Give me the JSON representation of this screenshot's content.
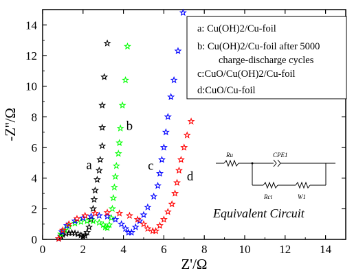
{
  "chart_data": {
    "type": "scatter",
    "title": "",
    "xlabel": "Z'/Ω",
    "ylabel": "-Z''/Ω",
    "xlim": [
      0,
      15
    ],
    "ylim": [
      0,
      15
    ],
    "xticks": [
      0,
      2,
      4,
      6,
      8,
      10,
      12,
      14
    ],
    "yticks": [
      0,
      2,
      4,
      6,
      8,
      10,
      12,
      14
    ],
    "grid": false,
    "legend_position": "top-right",
    "legend": [
      {
        "key": "a",
        "lines": [
          "a: Cu(OH)2/Cu-foil"
        ]
      },
      {
        "key": "b",
        "lines": [
          "b: Cu(OH)2/Cu-foil after 5000",
          "charge-discharge cycles"
        ]
      },
      {
        "key": "c",
        "lines": [
          "c:CuO/Cu(OH)2/Cu-foil"
        ]
      },
      {
        "key": "d",
        "lines": [
          "d:CuO/Cu-foil"
        ]
      }
    ],
    "series": [
      {
        "label": "a",
        "color": "#000000",
        "points": [
          [
            0.8,
            0.05
          ],
          [
            0.9,
            0.2
          ],
          [
            1.0,
            0.3
          ],
          [
            1.15,
            0.38
          ],
          [
            1.3,
            0.42
          ],
          [
            1.45,
            0.42
          ],
          [
            1.6,
            0.4
          ],
          [
            1.75,
            0.35
          ],
          [
            1.9,
            0.27
          ],
          [
            2.0,
            0.2
          ],
          [
            2.1,
            0.25
          ],
          [
            2.2,
            0.45
          ],
          [
            2.3,
            0.8
          ],
          [
            2.4,
            1.3
          ],
          [
            2.5,
            2.0
          ],
          [
            2.55,
            2.6
          ],
          [
            2.6,
            3.2
          ],
          [
            2.7,
            3.9
          ],
          [
            2.8,
            4.5
          ],
          [
            2.85,
            5.2
          ],
          [
            2.95,
            6.1
          ],
          [
            2.95,
            7.3
          ],
          [
            2.95,
            8.75
          ],
          [
            3.05,
            10.6
          ],
          [
            3.2,
            12.8
          ]
        ]
      },
      {
        "label": "b",
        "color": "#00ff00",
        "points": [
          [
            0.8,
            0.05
          ],
          [
            0.9,
            0.35
          ],
          [
            1.1,
            0.6
          ],
          [
            1.3,
            0.85
          ],
          [
            1.6,
            1.05
          ],
          [
            1.9,
            1.15
          ],
          [
            2.2,
            1.2
          ],
          [
            2.5,
            1.2
          ],
          [
            2.8,
            1.1
          ],
          [
            3.0,
            0.95
          ],
          [
            3.1,
            0.8
          ],
          [
            3.2,
            0.75
          ],
          [
            3.3,
            0.95
          ],
          [
            3.4,
            1.4
          ],
          [
            3.45,
            2.0
          ],
          [
            3.5,
            2.7
          ],
          [
            3.55,
            3.4
          ],
          [
            3.6,
            4.1
          ],
          [
            3.65,
            4.8
          ],
          [
            3.75,
            5.6
          ],
          [
            3.8,
            6.3
          ],
          [
            3.85,
            7.25
          ],
          [
            3.95,
            8.75
          ],
          [
            4.1,
            10.4
          ],
          [
            4.2,
            12.6
          ]
        ]
      },
      {
        "label": "c",
        "color": "#0000ff",
        "points": [
          [
            0.8,
            0.05
          ],
          [
            0.95,
            0.5
          ],
          [
            1.2,
            0.9
          ],
          [
            1.6,
            1.2
          ],
          [
            2.0,
            1.4
          ],
          [
            2.4,
            1.5
          ],
          [
            2.8,
            1.55
          ],
          [
            3.2,
            1.5
          ],
          [
            3.6,
            1.3
          ],
          [
            3.9,
            1.0
          ],
          [
            4.1,
            0.7
          ],
          [
            4.25,
            0.45
          ],
          [
            4.4,
            0.45
          ],
          [
            4.6,
            0.8
          ],
          [
            4.8,
            1.2
          ],
          [
            5.0,
            1.6
          ],
          [
            5.2,
            2.1
          ],
          [
            5.5,
            2.8
          ],
          [
            5.7,
            3.5
          ],
          [
            5.8,
            4.3
          ],
          [
            5.9,
            5.2
          ],
          [
            6.0,
            6.0
          ],
          [
            6.1,
            7.0
          ],
          [
            6.2,
            8.0
          ],
          [
            6.35,
            9.3
          ],
          [
            6.5,
            10.4
          ],
          [
            6.7,
            12.3
          ],
          [
            6.95,
            14.8
          ]
        ]
      },
      {
        "label": "d",
        "color": "#ff0000",
        "points": [
          [
            0.8,
            0.05
          ],
          [
            1.0,
            0.6
          ],
          [
            1.3,
            1.0
          ],
          [
            1.7,
            1.35
          ],
          [
            2.1,
            1.55
          ],
          [
            2.6,
            1.7
          ],
          [
            3.2,
            1.75
          ],
          [
            3.8,
            1.7
          ],
          [
            4.3,
            1.55
          ],
          [
            4.7,
            1.3
          ],
          [
            5.0,
            1.0
          ],
          [
            5.2,
            0.7
          ],
          [
            5.45,
            0.55
          ],
          [
            5.6,
            0.55
          ],
          [
            5.8,
            0.9
          ],
          [
            6.0,
            1.3
          ],
          [
            6.2,
            1.8
          ],
          [
            6.4,
            2.3
          ],
          [
            6.55,
            3.0
          ],
          [
            6.65,
            3.7
          ],
          [
            6.75,
            4.5
          ],
          [
            6.85,
            5.2
          ],
          [
            7.0,
            6.0
          ],
          [
            7.15,
            6.8
          ],
          [
            7.35,
            7.7
          ]
        ]
      }
    ],
    "curve_labels": [
      {
        "text": "a",
        "x": 2.3,
        "y": 4.6
      },
      {
        "text": "b",
        "x": 4.3,
        "y": 7.15
      },
      {
        "text": "c",
        "x": 5.35,
        "y": 4.55
      },
      {
        "text": "d",
        "x": 7.3,
        "y": 3.85
      }
    ],
    "inset": {
      "labels": {
        "ru": "Ru",
        "cpe": "CPE1",
        "rct": "Rct",
        "w": "W1"
      },
      "caption": "Equivalent Circuit"
    }
  }
}
